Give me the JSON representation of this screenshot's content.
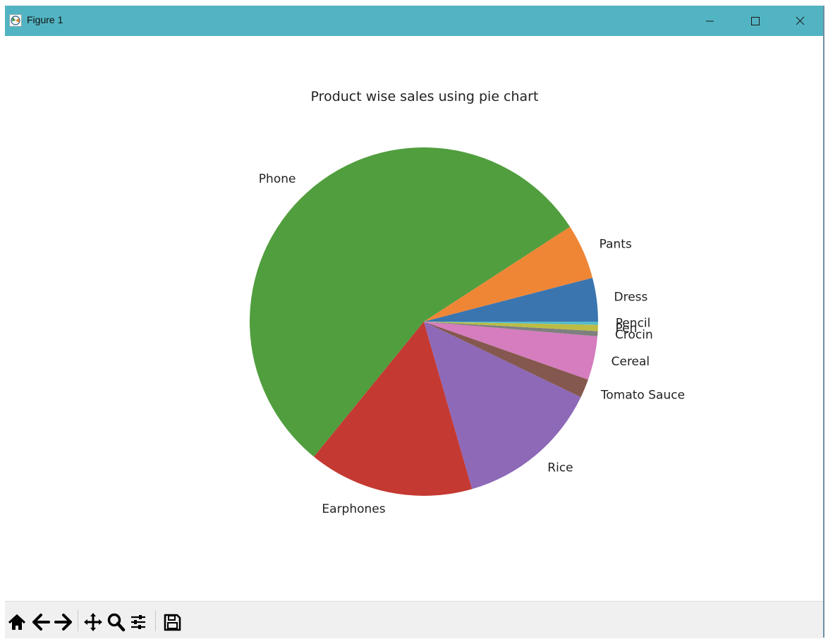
{
  "window": {
    "title": "Figure 1",
    "icon": "matplotlib-figure-icon",
    "controls": [
      "minimize-icon",
      "maximize-icon",
      "close-icon"
    ]
  },
  "chart_data": {
    "type": "pie",
    "title": "Product wise sales using pie chart",
    "startangle_deg": 0,
    "direction": "counterclockwise",
    "slices": [
      {
        "label": "Dress",
        "value": 4.2,
        "color": "#3a75b0"
      },
      {
        "label": "Pants",
        "value": 5.3,
        "color": "#ef8636"
      },
      {
        "label": "Phone",
        "value": 57.0,
        "color": "#519e3e"
      },
      {
        "label": "Earphones",
        "value": 15.9,
        "color": "#c43932"
      },
      {
        "label": "Rice",
        "value": 13.9,
        "color": "#8d69b8"
      },
      {
        "label": "Tomato Sauce",
        "value": 1.8,
        "color": "#84584e"
      },
      {
        "label": "Cereal",
        "value": 4.2,
        "color": "#d57dbe"
      },
      {
        "label": "Crocin",
        "value": 0.5,
        "color": "#7f7f7f"
      },
      {
        "label": "Pen",
        "value": 0.6,
        "color": "#bcbc45"
      },
      {
        "label": "Pencil",
        "value": 0.3,
        "color": "#56bbcc"
      }
    ]
  },
  "toolbar": {
    "buttons": [
      {
        "name": "home-icon",
        "label": "Home"
      },
      {
        "name": "back-arrow-icon",
        "label": "Back"
      },
      {
        "name": "forward-arrow-icon",
        "label": "Forward"
      },
      {
        "name": "pan-icon",
        "label": "Pan"
      },
      {
        "name": "zoom-icon",
        "label": "Zoom"
      },
      {
        "name": "configure-subplots-icon",
        "label": "Configure subplots"
      },
      {
        "name": "save-icon",
        "label": "Save"
      }
    ]
  }
}
